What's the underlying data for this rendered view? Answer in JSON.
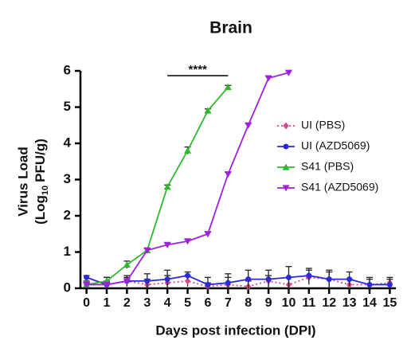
{
  "chart_data": {
    "type": "line",
    "title": "Brain",
    "x_label": "Days post infection (DPI)",
    "y_label": [
      "Virus Load",
      "(Log",
      "10",
      "PFU/g)"
    ],
    "x": [
      0,
      1,
      2,
      3,
      4,
      5,
      6,
      7,
      8,
      9,
      10,
      11,
      12,
      13,
      14,
      15
    ],
    "xlim": [
      -0.3,
      15.3
    ],
    "xticks": [
      0,
      1,
      2,
      3,
      4,
      5,
      6,
      7,
      8,
      9,
      10,
      11,
      12,
      13,
      14,
      15
    ],
    "ylim": [
      0,
      6
    ],
    "yticks": [
      0,
      1,
      2,
      3,
      4,
      5,
      6
    ],
    "annotation": {
      "text": "****",
      "from": 4,
      "to": 7
    },
    "series": [
      {
        "name": "UI (PBS)",
        "color": "#d9478a",
        "marker": "diamond",
        "line_style": "dotted",
        "values": [
          0.1,
          0.1,
          0.2,
          0.1,
          0.15,
          0.2,
          0.05,
          0.1,
          0.05,
          0.2,
          0.1,
          0.3,
          0.25,
          0.1,
          0.1,
          0.15
        ],
        "errors": [
          0.1,
          0.1,
          0.1,
          0.15,
          0.2,
          0.15,
          0.1,
          0.2,
          0.15,
          0.15,
          0.2,
          0.2,
          0.2,
          0.15,
          0.15,
          0.15
        ]
      },
      {
        "name": "UI (AZD5069)",
        "color": "#2a2ad8",
        "marker": "circle",
        "line_style": "solid",
        "values": [
          0.3,
          0.1,
          0.2,
          0.2,
          0.25,
          0.35,
          0.1,
          0.15,
          0.25,
          0.25,
          0.3,
          0.35,
          0.25,
          0.25,
          0.1,
          0.1
        ],
        "errors": [
          0.05,
          0.2,
          0.15,
          0.2,
          0.25,
          0.1,
          0.2,
          0.25,
          0.25,
          0.25,
          0.3,
          0.2,
          0.25,
          0.2,
          0.2,
          0.15
        ]
      },
      {
        "name": "S41 (PBS)",
        "color": "#2eb82e",
        "marker": "triangle-up",
        "line_style": "solid",
        "values": [
          0.1,
          0.2,
          0.65,
          1.05,
          2.8,
          3.8,
          4.9,
          5.55,
          null,
          null,
          null,
          null,
          null,
          null,
          null,
          null
        ],
        "errors": [
          0.05,
          0.1,
          0.1,
          0.05,
          0.05,
          0.1,
          0.05,
          0.05,
          null,
          null,
          null,
          null,
          null,
          null,
          null,
          null
        ]
      },
      {
        "name": "S41 (AZD5069)",
        "color": "#a020e0",
        "marker": "triangle-down",
        "line_style": "solid",
        "values": [
          0.1,
          0.1,
          0.2,
          1.05,
          1.2,
          1.3,
          1.5,
          3.15,
          4.5,
          5.8,
          5.95,
          null,
          null,
          null,
          null,
          null
        ],
        "errors": [
          0.05,
          0.05,
          0.05,
          0.05,
          0.05,
          0.05,
          0.05,
          0.05,
          0.05,
          0.05,
          0.05,
          null,
          null,
          null,
          null,
          null
        ]
      }
    ]
  }
}
